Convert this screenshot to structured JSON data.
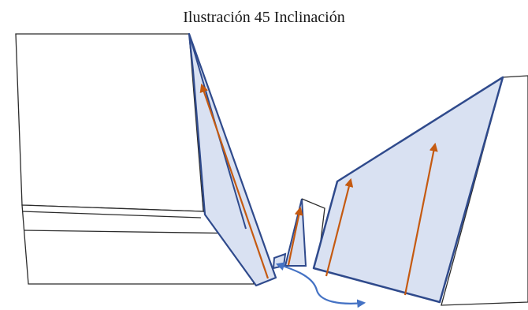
{
  "title": "Ilustración 45 Inclinación",
  "colors": {
    "block_outline": "#2b2b2b",
    "block_fill": "#ffffff",
    "plane_outline": "#2f4a8c",
    "plane_fill": "#d9e1f2",
    "vector_arrow": "#c55a11",
    "rotation_arrow": "#4472c4"
  },
  "icons": {
    "vector": "arrow-up-icon",
    "rotation": "curved-double-arrow-icon"
  }
}
